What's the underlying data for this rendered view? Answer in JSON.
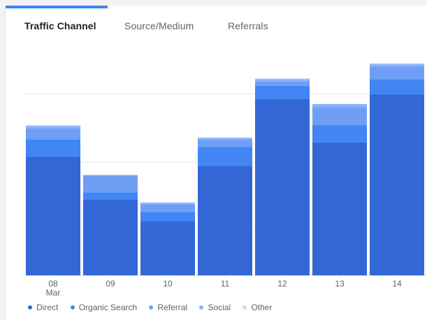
{
  "tabs": [
    {
      "label": "Traffic Channel",
      "active": true
    },
    {
      "label": "Source/Medium",
      "active": false
    },
    {
      "label": "Referrals",
      "active": false
    }
  ],
  "colors": {
    "accent": "#4285f4",
    "direct": "#3367d6",
    "organic_search": "#4285f4",
    "referral": "#6f9ff5",
    "social": "#8ab4f8",
    "other": "#c6dafc"
  },
  "chart_data": {
    "type": "bar",
    "stacked": true,
    "categories": [
      "08",
      "09",
      "10",
      "11",
      "12",
      "13",
      "14"
    ],
    "category_sublabels": [
      "Mar",
      "",
      "",
      "",
      "",
      "",
      ""
    ],
    "ylim": [
      0,
      300
    ],
    "grid": true,
    "legend_position": "bottom-left",
    "series": [
      {
        "name": "Direct",
        "color": "#3367d6",
        "values": [
          157,
          100,
          72,
          145,
          234,
          176,
          240
        ]
      },
      {
        "name": "Organic Search",
        "color": "#4285f4",
        "values": [
          23,
          10,
          12,
          25,
          17,
          23,
          20
        ]
      },
      {
        "name": "Referral",
        "color": "#6f9ff5",
        "values": [
          15,
          22,
          10,
          10,
          6,
          24,
          17
        ]
      },
      {
        "name": "Social",
        "color": "#8ab4f8",
        "values": [
          3,
          1,
          2,
          2,
          3,
          4,
          3
        ]
      },
      {
        "name": "Other",
        "color": "#c6dafc",
        "values": [
          1,
          0,
          1,
          1,
          1,
          0,
          1
        ]
      }
    ]
  }
}
